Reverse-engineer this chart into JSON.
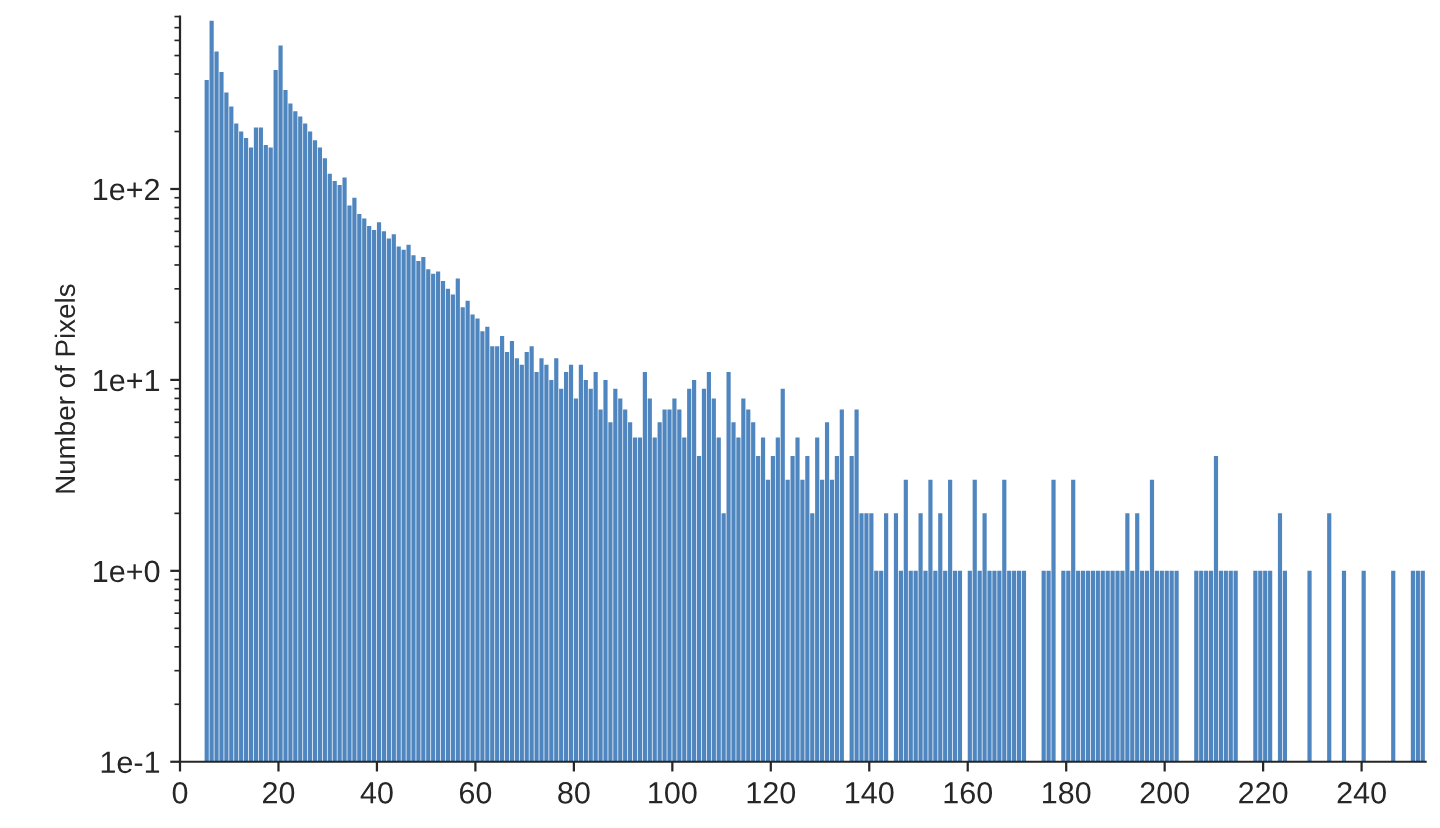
{
  "chart_data": {
    "type": "histogram",
    "ylabel": "Number of Pixels",
    "bins": [
      5,
      6,
      7,
      8,
      9,
      10,
      11,
      12,
      13,
      14,
      15,
      16,
      17,
      18,
      19,
      20,
      21,
      22,
      23,
      24,
      25,
      26,
      27,
      28,
      29,
      30,
      31,
      32,
      33,
      34,
      35,
      36,
      37,
      38,
      39,
      40,
      41,
      42,
      43,
      44,
      45,
      46,
      47,
      48,
      49,
      50,
      51,
      52,
      53,
      54,
      55,
      56,
      57,
      58,
      59,
      60,
      61,
      62,
      63,
      64,
      65,
      66,
      67,
      68,
      69,
      70,
      71,
      72,
      73,
      74,
      75,
      76,
      77,
      78,
      79,
      80,
      81,
      82,
      83,
      84,
      85,
      86,
      87,
      88,
      89,
      90,
      91,
      92,
      93,
      94,
      95,
      96,
      97,
      98,
      99,
      100,
      101,
      102,
      103,
      104,
      105,
      106,
      107,
      108,
      109,
      110,
      111,
      112,
      113,
      114,
      115,
      116,
      117,
      118,
      119,
      120,
      121,
      122,
      123,
      124,
      125,
      126,
      127,
      128,
      129,
      130,
      131,
      132,
      133,
      134,
      135,
      136,
      137,
      138,
      139,
      140,
      141,
      142,
      143,
      144,
      145,
      146,
      147,
      148,
      149,
      150,
      151,
      152,
      153,
      154,
      155,
      156,
      157,
      158,
      159,
      160,
      161,
      162,
      163,
      164,
      165,
      166,
      167,
      168,
      169,
      170,
      171,
      172,
      173,
      174,
      175,
      176,
      177,
      178,
      179,
      180,
      181,
      182,
      183,
      184,
      185,
      186,
      187,
      188,
      189,
      190,
      191,
      192,
      193,
      194,
      195,
      196,
      197,
      198,
      199,
      200,
      201,
      202,
      203,
      204,
      205,
      206,
      207,
      208,
      209,
      210,
      211,
      212,
      213,
      214,
      215,
      216,
      217,
      218,
      219,
      220,
      221,
      222,
      223,
      224,
      225,
      226,
      227,
      228,
      229,
      230,
      231,
      232,
      233,
      234,
      235,
      236,
      237,
      238,
      239,
      240,
      241,
      242,
      243,
      244,
      245,
      246,
      247,
      248,
      249,
      250,
      251,
      252,
      253
    ],
    "values": [
      372,
      760,
      525,
      410,
      320,
      270,
      220,
      200,
      185,
      165,
      210,
      210,
      170,
      165,
      420,
      565,
      330,
      280,
      255,
      240,
      220,
      200,
      180,
      165,
      145,
      120,
      110,
      105,
      115,
      82,
      90,
      74,
      70,
      64,
      61,
      67,
      60,
      55,
      58,
      50,
      48,
      51,
      45,
      42,
      44,
      38,
      36,
      37,
      33,
      30,
      28,
      34,
      24,
      26,
      22,
      21,
      18,
      19,
      15,
      15,
      17,
      14,
      16,
      13,
      12,
      14,
      15,
      11,
      13,
      12,
      10,
      13,
      9,
      11,
      12,
      8,
      12,
      10,
      9,
      11,
      7,
      10,
      6,
      9,
      8,
      7,
      6,
      5,
      5,
      11,
      8,
      5,
      6,
      7,
      7,
      8,
      7,
      5,
      9,
      10,
      4,
      9,
      11,
      8,
      5,
      2,
      11,
      6,
      5,
      8,
      7,
      6,
      4,
      5,
      3,
      4,
      5,
      9,
      3,
      4,
      5,
      3,
      4,
      2,
      5,
      3,
      6,
      3,
      4,
      7,
      null,
      4,
      7,
      2,
      2,
      2,
      1,
      1,
      2,
      null,
      2,
      1,
      3,
      1,
      1,
      2,
      1,
      3,
      1,
      2,
      1,
      3,
      1,
      1,
      null,
      1,
      3,
      1,
      2,
      1,
      1,
      1,
      3,
      1,
      1,
      1,
      1,
      null,
      null,
      null,
      1,
      1,
      3,
      null,
      1,
      1,
      3,
      1,
      1,
      1,
      1,
      1,
      1,
      1,
      1,
      1,
      1,
      2,
      1,
      2,
      1,
      1,
      3,
      1,
      1,
      1,
      1,
      1,
      null,
      null,
      null,
      1,
      1,
      1,
      1,
      4,
      1,
      1,
      1,
      1,
      null,
      null,
      null,
      1,
      1,
      1,
      1,
      null,
      2,
      1,
      null,
      null,
      null,
      null,
      1,
      null,
      null,
      null,
      2,
      null,
      null,
      1,
      null,
      null,
      null,
      1,
      null,
      null,
      null,
      null,
      null,
      1,
      null,
      null,
      null,
      1,
      1,
      1
    ],
    "color": "#4f86bf",
    "log": "y",
    "xlim": [
      0,
      253
    ],
    "xticks": [
      0,
      20,
      40,
      60,
      80,
      100,
      120,
      140,
      160,
      180,
      200,
      220,
      240
    ],
    "ylim": [
      0.1,
      800
    ],
    "yticks": [
      {
        "value": 0.1,
        "label": "1e-1"
      },
      {
        "value": 1,
        "label": "1e+0"
      },
      {
        "value": 10,
        "label": "1e+1"
      },
      {
        "value": 100,
        "label": "1e+2"
      }
    ],
    "grid": false,
    "legend": false
  }
}
